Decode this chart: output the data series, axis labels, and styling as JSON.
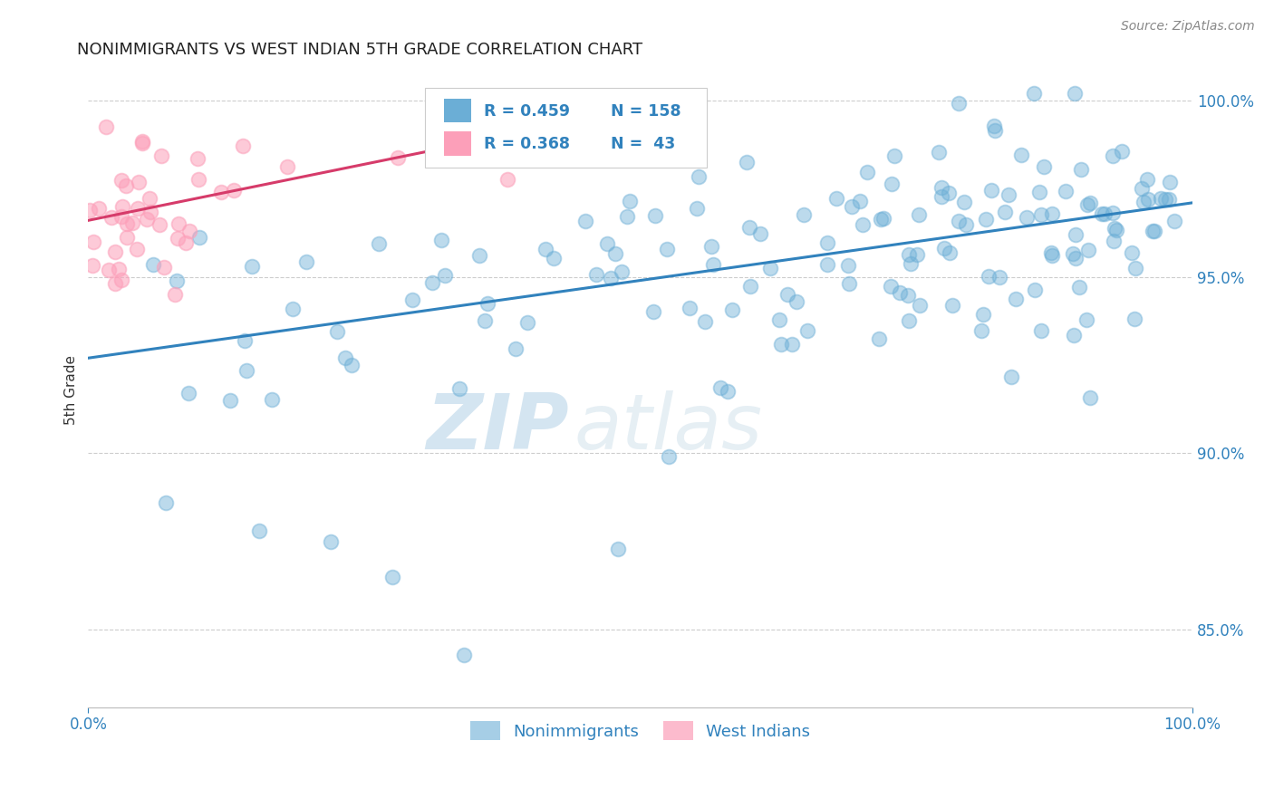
{
  "title": "NONIMMIGRANTS VS WEST INDIAN 5TH GRADE CORRELATION CHART",
  "source": "Source: ZipAtlas.com",
  "ylabel": "5th Grade",
  "ytick_vals": [
    0.85,
    0.9,
    0.95,
    1.0
  ],
  "xlim": [
    0.0,
    1.0
  ],
  "ylim": [
    0.828,
    1.008
  ],
  "legend_blue_r": "R = 0.459",
  "legend_blue_n": "N = 158",
  "legend_pink_r": "R = 0.368",
  "legend_pink_n": "N =  43",
  "legend_label_blue": "Nonimmigrants",
  "legend_label_pink": "West Indians",
  "blue_color": "#6baed6",
  "pink_color": "#fc9fb9",
  "blue_line_color": "#3182bd",
  "pink_line_color": "#d63b6a",
  "watermark_zip": "ZIP",
  "watermark_atlas": "atlas",
  "background_color": "#ffffff",
  "grid_color": "#c8c8c8",
  "blue_line_start_x": 0.0,
  "blue_line_start_y": 0.927,
  "blue_line_end_x": 1.0,
  "blue_line_end_y": 0.971,
  "pink_line_start_x": 0.0,
  "pink_line_start_y": 0.966,
  "pink_line_end_x": 0.55,
  "pink_line_end_y": 1.001
}
